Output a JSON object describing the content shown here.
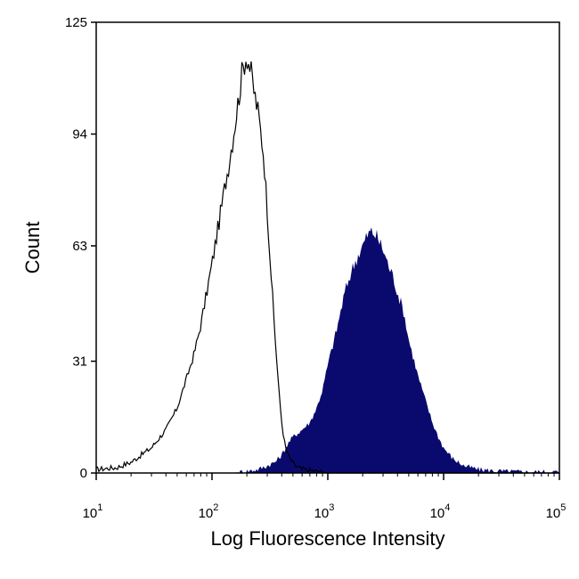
{
  "chart_data": {
    "type": "area",
    "title": "",
    "xlabel": "Log Fluorescence Intensity",
    "ylabel": "Count",
    "x_scale": "log",
    "xlim": [
      10,
      100000
    ],
    "ylim": [
      0,
      125
    ],
    "x_ticks": [
      {
        "value": 10,
        "base": "10",
        "exp": "1"
      },
      {
        "value": 100,
        "base": "10",
        "exp": "2"
      },
      {
        "value": 1000,
        "base": "10",
        "exp": "3"
      },
      {
        "value": 10000,
        "base": "10",
        "exp": "4"
      },
      {
        "value": 100000,
        "base": "10",
        "exp": "5"
      }
    ],
    "y_ticks": [
      0,
      31,
      63,
      94,
      125
    ],
    "grid": false,
    "legend": "none",
    "series": [
      {
        "style": "outline",
        "color": "#000000",
        "x": [
          10,
          15,
          20,
          30,
          40,
          50,
          60,
          70,
          80,
          90,
          100,
          110,
          120,
          130,
          140,
          150,
          160,
          170,
          180,
          190,
          200,
          210,
          220,
          230,
          240,
          250,
          260,
          280,
          300,
          320,
          350,
          380,
          400,
          430,
          470,
          520,
          600,
          800,
          1000,
          2000,
          5000,
          10000,
          100000
        ],
        "values": [
          1,
          1.5,
          3,
          7,
          12,
          18,
          26,
          33,
          41,
          50,
          58,
          66,
          73,
          80,
          86,
          92,
          98,
          104,
          110,
          114,
          116,
          113,
          110,
          106,
          103,
          100,
          96,
          88,
          73,
          58,
          38,
          22,
          14,
          7,
          4,
          2,
          1,
          0.5,
          0,
          0,
          0,
          0,
          0
        ]
      },
      {
        "style": "filled",
        "color": "#0a0a6e",
        "x": [
          10,
          150,
          200,
          250,
          300,
          350,
          400,
          450,
          500,
          600,
          700,
          800,
          900,
          1000,
          1200,
          1400,
          1600,
          1800,
          2000,
          2200,
          2400,
          2600,
          2800,
          3000,
          3300,
          3700,
          4000,
          4500,
          5000,
          6000,
          7000,
          8000,
          9000,
          10000,
          12000,
          15000,
          20000,
          30000,
          50000,
          100000
        ],
        "values": [
          0,
          0,
          0.5,
          1,
          2,
          3,
          5,
          8,
          10,
          12,
          14,
          18,
          23,
          30,
          40,
          50,
          56,
          60,
          63,
          66,
          67,
          66,
          64,
          62,
          58,
          54,
          50,
          45,
          37,
          27,
          20,
          14,
          10,
          7,
          4,
          2,
          1,
          0.5,
          0.3,
          0.3
        ]
      }
    ]
  }
}
